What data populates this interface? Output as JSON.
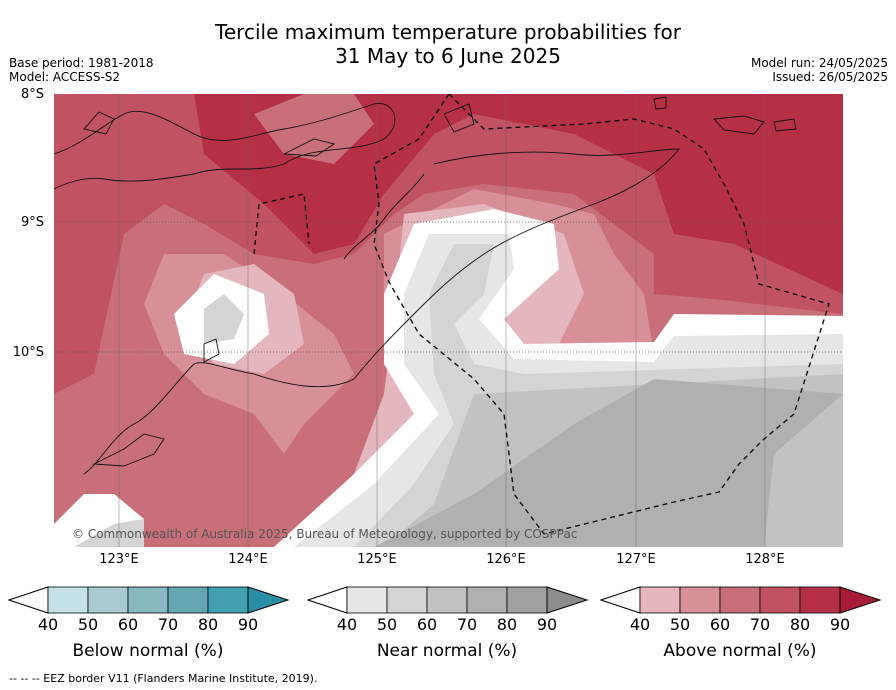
{
  "title": {
    "line1": "Tercile maximum temperature probabilities for",
    "line2": "31 May to 6 June 2025"
  },
  "meta_left": {
    "base_period": "Base period: 1981-2018",
    "model": "Model: ACCESS-S2"
  },
  "meta_right": {
    "model_run": "Model run: 24/05/2025",
    "issued": "Issued: 26/05/2025"
  },
  "map": {
    "lat_labels": [
      "8°S",
      "9°S",
      "10°S"
    ],
    "lon_labels": [
      "123°E",
      "124°E",
      "125°E",
      "126°E",
      "127°E",
      "128°E"
    ],
    "copyright": "© Commonwealth of Australia 2025, Bureau of Meteorology, supported by COSPPac"
  },
  "colorbars": [
    {
      "label": "Below normal (%)",
      "ticks": [
        "40",
        "50",
        "60",
        "70",
        "80",
        "90"
      ],
      "colors": [
        "#ffffff",
        "#c6e2e9",
        "#a7cbd1",
        "#88b9c2",
        "#64a6b2",
        "#42a0b0",
        "#2b8ea6"
      ]
    },
    {
      "label": "Near normal (%)",
      "ticks": [
        "40",
        "50",
        "60",
        "70",
        "80",
        "90"
      ],
      "colors": [
        "#ffffff",
        "#e6e6e6",
        "#d4d4d4",
        "#c2c2c2",
        "#b0b0b0",
        "#a1a1a1",
        "#8c8c8c"
      ]
    },
    {
      "label": "Above normal (%)",
      "ticks": [
        "40",
        "50",
        "60",
        "70",
        "80",
        "90"
      ],
      "colors": [
        "#ffffff",
        "#e4b6bd",
        "#d78f98",
        "#c96f79",
        "#c05261",
        "#b52f45",
        "#a81c38"
      ]
    }
  ],
  "footer": "--  --  -- EEZ border V11 (Flanders Marine Institute, 2019)."
}
